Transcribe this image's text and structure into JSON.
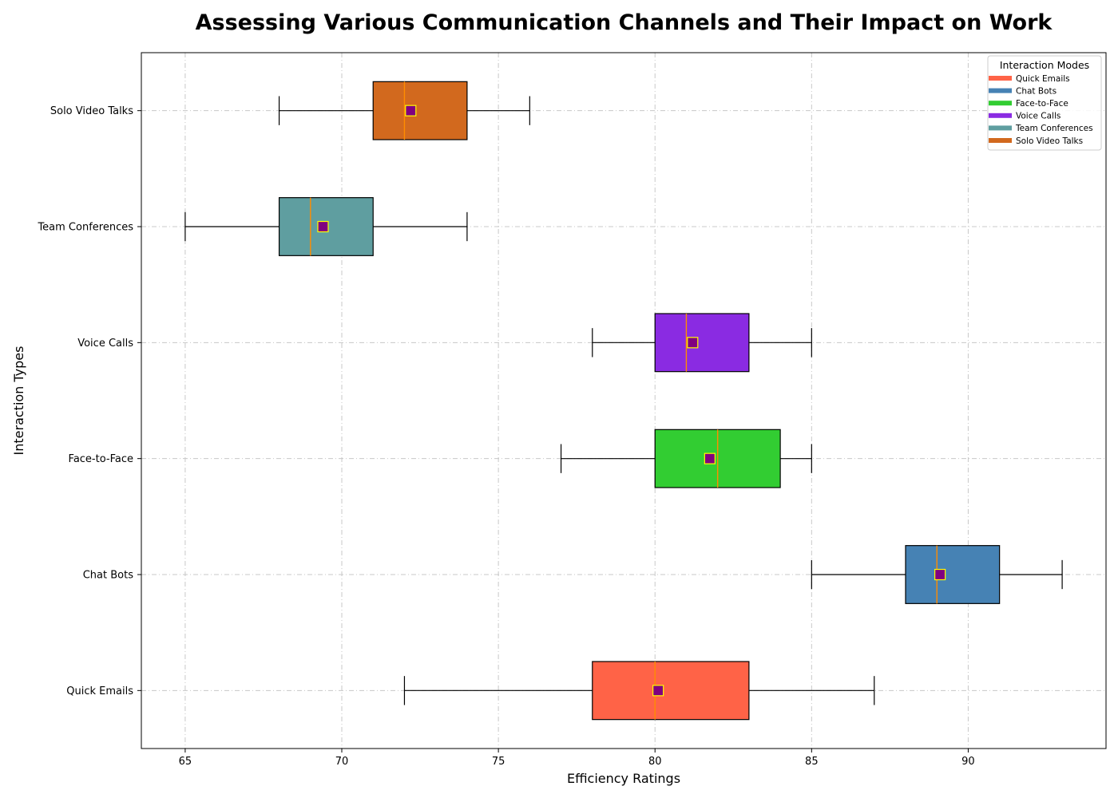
{
  "chart_data": {
    "type": "box",
    "orientation": "horizontal",
    "title": "Assessing Various Communication Channels and Their Impact on Work",
    "xlabel": "Efficiency Ratings",
    "ylabel": "Interaction Types",
    "xlim": [
      63.6,
      94.4
    ],
    "xticks": [
      65,
      70,
      75,
      80,
      85,
      90
    ],
    "grid": true,
    "legend": {
      "title": "Interaction Modes",
      "placement": "top-right"
    },
    "categories": [
      "Quick Emails",
      "Chat Bots",
      "Face-to-Face",
      "Voice Calls",
      "Team Conferences",
      "Solo Video Talks"
    ],
    "series": [
      {
        "name": "Quick Emails",
        "color": "#FF6347",
        "whisker_low": 72,
        "q1": 78,
        "median": 80,
        "q3": 83,
        "whisker_high": 87,
        "mean": 80.1
      },
      {
        "name": "Chat Bots",
        "color": "#4682B4",
        "whisker_low": 85,
        "q1": 88,
        "median": 89,
        "q3": 91,
        "whisker_high": 93,
        "mean": 89.1
      },
      {
        "name": "Face-to-Face",
        "color": "#32CD32",
        "whisker_low": 77,
        "q1": 80,
        "median": 82,
        "q3": 84,
        "whisker_high": 85,
        "mean": 81.75
      },
      {
        "name": "Voice Calls",
        "color": "#8A2BE2",
        "whisker_low": 78,
        "q1": 80,
        "median": 81,
        "q3": 83,
        "whisker_high": 85,
        "mean": 81.2
      },
      {
        "name": "Team Conferences",
        "color": "#5F9EA0",
        "whisker_low": 65,
        "q1": 68,
        "median": 69,
        "q3": 71,
        "whisker_high": 74,
        "mean": 69.4
      },
      {
        "name": "Solo Video Talks",
        "color": "#D2691E",
        "whisker_low": 68,
        "q1": 71,
        "median": 72,
        "q3": 74,
        "whisker_high": 76,
        "mean": 72.2
      }
    ],
    "median_color": "#FF8C00",
    "mean_marker": {
      "shape": "square",
      "fill": "#800080",
      "edge": "#FFFF00"
    }
  }
}
